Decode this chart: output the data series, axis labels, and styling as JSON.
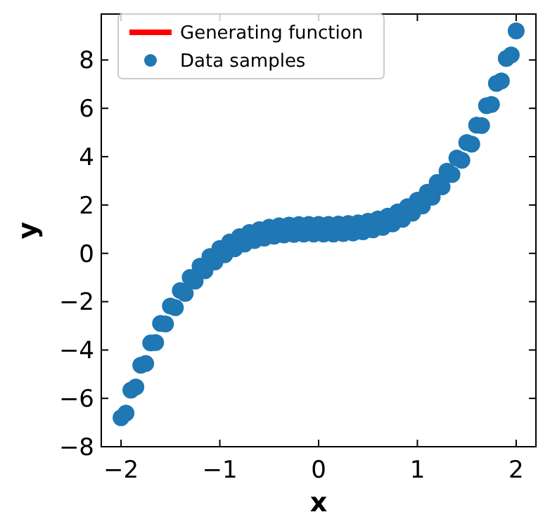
{
  "chart_data": {
    "type": "scatter",
    "xlabel": "x",
    "ylabel": "y",
    "x": [
      -2,
      -1.95,
      -1.9,
      -1.85,
      -1.8,
      -1.75,
      -1.7,
      -1.65,
      -1.6,
      -1.55,
      -1.5,
      -1.45,
      -1.4,
      -1.35,
      -1.3,
      -1.25,
      -1.2,
      -1.15,
      -1.1,
      -1.05,
      -1,
      -0.95,
      -0.9,
      -0.85,
      -0.8,
      -0.75,
      -0.7,
      -0.65,
      -0.6,
      -0.55,
      -0.5,
      -0.45,
      -0.4,
      -0.35,
      -0.3,
      -0.25,
      -0.2,
      -0.15,
      -0.1,
      -0.05,
      0,
      0.05,
      0.1,
      0.15,
      0.2,
      0.25,
      0.3,
      0.35,
      0.4,
      0.45,
      0.5,
      0.55,
      0.6,
      0.65,
      0.7,
      0.75,
      0.8,
      0.85,
      0.9,
      0.95,
      1,
      1.05,
      1.1,
      1.15,
      1.2,
      1.25,
      1.3,
      1.35,
      1.4,
      1.45,
      1.5,
      1.55,
      1.6,
      1.65,
      1.7,
      1.75,
      1.8,
      1.85,
      1.9,
      1.95,
      2
    ],
    "series": [
      {
        "name": "Generating function",
        "type": "line",
        "color": "#ff0000",
        "values": [
          null,
          null,
          null,
          null,
          null,
          null,
          null,
          null,
          null,
          null,
          null,
          null,
          null,
          null,
          null,
          null,
          null,
          null,
          null,
          null,
          null,
          null,
          null,
          null,
          null,
          null,
          null,
          null,
          null,
          null,
          null,
          null,
          null,
          null,
          null,
          null,
          null,
          null,
          null,
          null,
          null,
          null,
          null,
          null,
          null,
          null,
          null,
          null,
          null,
          null,
          null,
          null,
          null,
          null,
          null,
          null,
          null,
          null,
          null,
          null,
          null,
          null,
          null,
          null,
          null,
          null,
          null,
          null,
          null,
          null,
          null,
          null,
          null,
          null,
          null,
          null,
          null,
          null,
          null,
          null,
          null
        ]
      },
      {
        "name": "Data samples",
        "color": "#1f77b4",
        "values": [
          -6.8,
          -6.61,
          -5.66,
          -5.53,
          -4.63,
          -4.56,
          -3.71,
          -3.69,
          -2.9,
          -2.92,
          -2.18,
          -2.25,
          -1.54,
          -1.66,
          -1,
          -1.15,
          -0.53,
          -0.72,
          -0.13,
          -0.36,
          0.2,
          -0.06,
          0.47,
          0.19,
          0.69,
          0.38,
          0.86,
          0.53,
          0.98,
          0.63,
          1.08,
          0.71,
          1.14,
          0.76,
          1.17,
          0.78,
          1.19,
          0.8,
          1.2,
          0.8,
          1.2,
          0.8,
          1.2,
          0.8,
          1.21,
          0.82,
          1.23,
          0.84,
          1.26,
          0.89,
          1.33,
          0.97,
          1.42,
          1.07,
          1.54,
          1.22,
          1.71,
          1.41,
          1.93,
          1.66,
          2.2,
          1.96,
          2.53,
          2.32,
          2.93,
          2.75,
          3.4,
          3.26,
          3.94,
          3.85,
          4.58,
          4.52,
          5.3,
          5.29,
          6.11,
          6.16,
          7.03,
          7.13,
          8.06,
          8.21,
          9.2
        ]
      }
    ],
    "xlim": [
      -2.2,
      2.2
    ],
    "xticks": [
      {
        "value": -2,
        "label": "−2"
      },
      {
        "value": -1,
        "label": "−1"
      },
      0,
      1,
      2
    ],
    "ylim": [
      -8,
      9.9
    ],
    "yticks": [
      {
        "value": -8,
        "label": "−8"
      },
      {
        "value": -6,
        "label": "−6"
      },
      {
        "value": -4,
        "label": "−4"
      },
      {
        "value": -2,
        "label": "−2"
      },
      0,
      2,
      4,
      6,
      8
    ],
    "marker": "circle",
    "legend": "top left",
    "grid": false
  }
}
